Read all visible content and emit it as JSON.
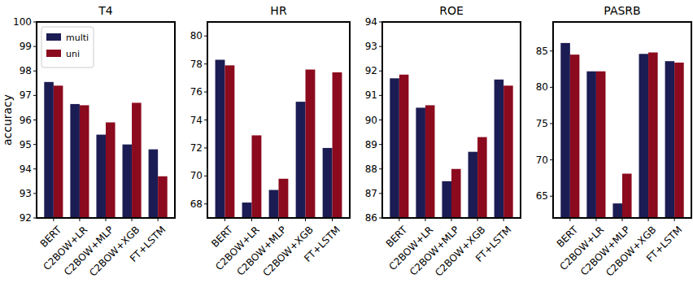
{
  "chart_data": [
    {
      "type": "bar",
      "title": "T4",
      "ylabel": "accuracy",
      "categories": [
        "BERT",
        "C2BOW+LR",
        "C2BOW+MLP",
        "C2BOW+XGB",
        "FT+LSTM"
      ],
      "series": [
        {
          "name": "multi",
          "color": "#1c1c54",
          "values": [
            97.55,
            96.65,
            95.4,
            95.0,
            94.8
          ]
        },
        {
          "name": "uni",
          "color": "#8b0a1e",
          "values": [
            97.4,
            96.6,
            95.9,
            96.7,
            93.7
          ]
        }
      ],
      "ylim": [
        92,
        100
      ],
      "yticks": [
        92,
        93,
        94,
        95,
        96,
        97,
        98,
        99,
        100
      ],
      "legend": "upper left"
    },
    {
      "type": "bar",
      "title": "HR",
      "categories": [
        "BERT",
        "C2BOW+LR",
        "C2BOW+MLP",
        "C2BOW+XGB",
        "FT+LSTM"
      ],
      "series": [
        {
          "name": "multi",
          "color": "#1c1c54",
          "values": [
            78.3,
            68.1,
            69.0,
            75.3,
            72.0
          ]
        },
        {
          "name": "uni",
          "color": "#8b0a1e",
          "values": [
            77.9,
            72.9,
            69.8,
            77.6,
            77.4
          ]
        }
      ],
      "ylim": [
        67,
        81
      ],
      "yticks": [
        68,
        70,
        72,
        74,
        76,
        78,
        80
      ]
    },
    {
      "type": "bar",
      "title": "ROE",
      "categories": [
        "BERT",
        "C2BOW+LR",
        "C2BOW+MLP",
        "C2BOW+XGB",
        "FT+LSTM"
      ],
      "series": [
        {
          "name": "multi",
          "color": "#1c1c54",
          "values": [
            91.7,
            90.5,
            87.5,
            88.7,
            91.65
          ]
        },
        {
          "name": "uni",
          "color": "#8b0a1e",
          "values": [
            91.85,
            90.6,
            88.0,
            89.3,
            91.4
          ]
        }
      ],
      "ylim": [
        86,
        94
      ],
      "yticks": [
        86,
        87,
        88,
        89,
        90,
        91,
        92,
        93,
        94
      ]
    },
    {
      "type": "bar",
      "title": "PASRB",
      "categories": [
        "BERT",
        "C2BOW+LR",
        "C2BOW+MLP",
        "C2BOW+XGB",
        "FT+LSTM"
      ],
      "series": [
        {
          "name": "multi",
          "color": "#1c1c54",
          "values": [
            86.1,
            82.2,
            64.0,
            84.6,
            83.6
          ]
        },
        {
          "name": "uni",
          "color": "#8b0a1e",
          "values": [
            84.5,
            82.2,
            68.1,
            84.8,
            83.4
          ]
        }
      ],
      "ylim": [
        62,
        89
      ],
      "yticks": [
        65,
        70,
        75,
        80,
        85
      ]
    }
  ]
}
